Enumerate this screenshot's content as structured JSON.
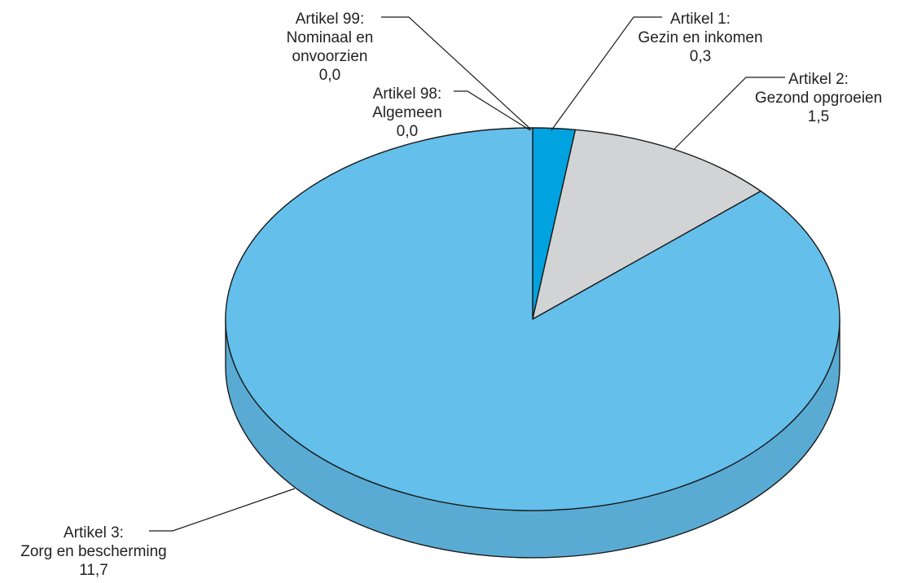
{
  "chart_data": {
    "type": "pie",
    "slices": [
      {
        "article": "Artikel 1:",
        "name": "Gezin en inkomen",
        "value": 0.3,
        "value_label": "0,3",
        "color": "#00a3e0",
        "side_color": "#0090c6"
      },
      {
        "article": "Artikel 2:",
        "name": "Gezond opgroeien",
        "value": 1.5,
        "value_label": "1,5",
        "color": "#d1d3d4",
        "side_color": "#b7b9ba"
      },
      {
        "article": "Artikel 3:",
        "name": "Zorg en bescherming",
        "value": 11.7,
        "value_label": "11,7",
        "color": "#64bfeb",
        "side_color": "#5aabd4"
      },
      {
        "article": "Artikel 98:",
        "name": "Algemeen",
        "value": 0.0,
        "value_label": "0,0",
        "color": "#64bfeb",
        "side_color": "#5aabd4"
      },
      {
        "article": "Artikel 99:",
        "name": [
          "Nominaal en",
          "onvoorzien"
        ],
        "value": 0.0,
        "value_label": "0,0",
        "color": "#64bfeb",
        "side_color": "#5aabd4"
      }
    ],
    "start_angle": "top",
    "direction": "clockwise",
    "style": "3d-tilted"
  }
}
